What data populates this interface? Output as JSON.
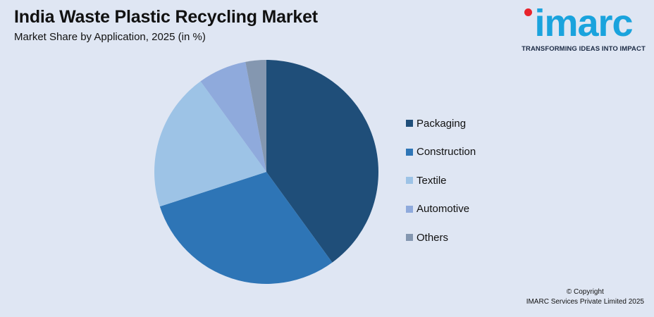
{
  "title": "India Waste Plastic Recycling Market",
  "subtitle": "Market Share by Application, 2025 (in %)",
  "logo": {
    "word": "imarc",
    "tagline": "TRANSFORMING IDEAS INTO IMPACT"
  },
  "footer": {
    "copyright": "© Copyright",
    "company": "IMARC Services Private Limited 2025"
  },
  "chart_data": {
    "type": "pie",
    "categories": [
      "Packaging",
      "Construction",
      "Textile",
      "Automotive",
      "Others"
    ],
    "values": [
      40,
      30,
      20,
      7,
      3
    ],
    "colors": [
      "#1f4e79",
      "#2e75b6",
      "#9dc3e6",
      "#8faadc",
      "#8497b0"
    ],
    "legend_position": "right"
  }
}
